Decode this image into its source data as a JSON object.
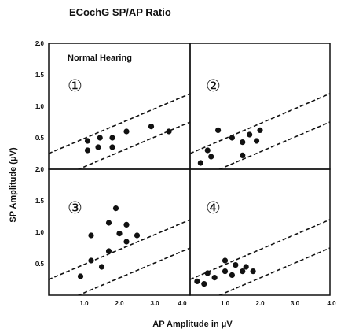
{
  "chart_data": {
    "type": "scatter",
    "title": "ECochG SP/AP Ratio",
    "xlabel": "AP Amplitude in μV",
    "ylabel": "SP Amplitude (μV)",
    "xlim": [
      0,
      4.0
    ],
    "ylim": [
      0,
      2.0
    ],
    "x_ticks": [
      "1.0",
      "2.0",
      "3.0",
      "4.0"
    ],
    "y_ticks": [
      "0.5",
      "1.0",
      "1.5",
      "2.0"
    ],
    "grid": false,
    "reference_lines": [
      {
        "style": "dashed",
        "points": [
          [
            0,
            0.25
          ],
          [
            4.0,
            1.2
          ]
        ]
      },
      {
        "style": "dashed",
        "points": [
          [
            0,
            -0.2
          ],
          [
            4.0,
            0.75
          ]
        ]
      }
    ],
    "panels": [
      {
        "number": "①",
        "label": "Normal Hearing",
        "points": [
          [
            1.1,
            0.3
          ],
          [
            1.1,
            0.45
          ],
          [
            1.4,
            0.35
          ],
          [
            1.45,
            0.5
          ],
          [
            1.8,
            0.35
          ],
          [
            1.8,
            0.5
          ],
          [
            2.2,
            0.6
          ],
          [
            2.9,
            0.68
          ],
          [
            3.4,
            0.6
          ]
        ]
      },
      {
        "number": "②",
        "label": "",
        "points": [
          [
            0.3,
            0.1
          ],
          [
            0.5,
            0.3
          ],
          [
            0.6,
            0.2
          ],
          [
            0.8,
            0.62
          ],
          [
            1.2,
            0.5
          ],
          [
            1.5,
            0.22
          ],
          [
            1.5,
            0.43
          ],
          [
            1.7,
            0.55
          ],
          [
            1.9,
            0.45
          ],
          [
            2.0,
            0.62
          ]
        ]
      },
      {
        "number": "③",
        "label": "",
        "points": [
          [
            0.9,
            0.3
          ],
          [
            1.2,
            0.95
          ],
          [
            1.2,
            0.55
          ],
          [
            1.5,
            0.45
          ],
          [
            1.7,
            0.7
          ],
          [
            1.7,
            1.15
          ],
          [
            1.9,
            1.38
          ],
          [
            2.0,
            0.98
          ],
          [
            2.2,
            0.85
          ],
          [
            2.2,
            1.12
          ],
          [
            2.5,
            0.95
          ]
        ]
      },
      {
        "number": "④",
        "label": "",
        "points": [
          [
            0.2,
            0.22
          ],
          [
            0.4,
            0.18
          ],
          [
            0.5,
            0.35
          ],
          [
            0.7,
            0.28
          ],
          [
            1.0,
            0.38
          ],
          [
            1.0,
            0.55
          ],
          [
            1.2,
            0.32
          ],
          [
            1.3,
            0.48
          ],
          [
            1.5,
            0.38
          ],
          [
            1.6,
            0.45
          ],
          [
            1.8,
            0.38
          ]
        ]
      }
    ]
  }
}
